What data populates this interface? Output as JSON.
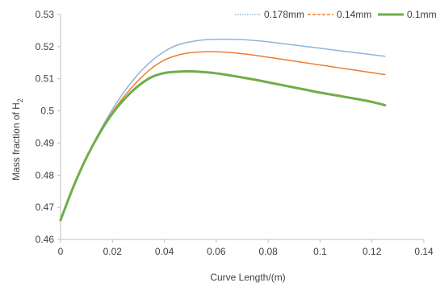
{
  "chart_data": {
    "type": "line",
    "title": "",
    "xlabel": "Curve Length/(m)",
    "ylabel_main": "Mass fraction of H",
    "ylabel_sub": "2",
    "xlim": [
      0,
      0.14
    ],
    "ylim": [
      0.46,
      0.53
    ],
    "x_ticks": [
      0,
      0.02,
      0.04,
      0.06,
      0.08,
      0.1,
      0.12,
      0.14
    ],
    "x_tick_labels": [
      "0",
      "0.02",
      "0.04",
      "0.06",
      "0.08",
      "0.1",
      "0.12",
      "0.14"
    ],
    "y_ticks": [
      0.46,
      0.47,
      0.48,
      0.49,
      0.5,
      0.51,
      0.52,
      0.53
    ],
    "y_tick_labels": [
      "0.46",
      "0.47",
      "0.48",
      "0.49",
      "0.5",
      "0.51",
      "0.52",
      "0.53"
    ],
    "grid": false,
    "legend_position": "top-right",
    "series": [
      {
        "name": "0.178mm",
        "color": "#8fb4dc",
        "x": [
          0,
          0.005,
          0.01,
          0.015,
          0.02,
          0.025,
          0.03,
          0.035,
          0.04,
          0.045,
          0.05,
          0.055,
          0.06,
          0.065,
          0.07,
          0.075,
          0.08,
          0.085,
          0.09,
          0.095,
          0.1,
          0.105,
          0.11,
          0.115,
          0.12,
          0.125
        ],
        "y": [
          0.466,
          0.4765,
          0.4855,
          0.4935,
          0.5005,
          0.5065,
          0.5115,
          0.5155,
          0.5185,
          0.5205,
          0.5215,
          0.5221,
          0.5223,
          0.5223,
          0.5222,
          0.5219,
          0.5215,
          0.521,
          0.5205,
          0.52,
          0.5195,
          0.519,
          0.5185,
          0.518,
          0.5175,
          0.517
        ]
      },
      {
        "name": "0.14mm",
        "color": "#ed7d31",
        "x": [
          0,
          0.005,
          0.01,
          0.015,
          0.02,
          0.025,
          0.03,
          0.035,
          0.04,
          0.045,
          0.05,
          0.055,
          0.06,
          0.065,
          0.07,
          0.075,
          0.08,
          0.085,
          0.09,
          0.095,
          0.1,
          0.105,
          0.11,
          0.115,
          0.12,
          0.125
        ],
        "y": [
          0.466,
          0.4765,
          0.4855,
          0.4932,
          0.4997,
          0.505,
          0.5095,
          0.5132,
          0.5158,
          0.5173,
          0.5181,
          0.5184,
          0.5184,
          0.5182,
          0.5178,
          0.5173,
          0.5167,
          0.5161,
          0.5155,
          0.5149,
          0.5143,
          0.5137,
          0.5131,
          0.5125,
          0.5119,
          0.5113
        ]
      },
      {
        "name": "0.1mm",
        "color": "#70ad47",
        "x": [
          0,
          0.005,
          0.01,
          0.015,
          0.02,
          0.025,
          0.03,
          0.035,
          0.04,
          0.045,
          0.05,
          0.055,
          0.06,
          0.065,
          0.07,
          0.075,
          0.08,
          0.085,
          0.09,
          0.095,
          0.1,
          0.105,
          0.11,
          0.115,
          0.12,
          0.125
        ],
        "y": [
          0.466,
          0.4765,
          0.4855,
          0.493,
          0.4992,
          0.504,
          0.5078,
          0.5105,
          0.5118,
          0.5122,
          0.5123,
          0.5121,
          0.5117,
          0.5111,
          0.5104,
          0.5097,
          0.5089,
          0.5081,
          0.5073,
          0.5065,
          0.5057,
          0.505,
          0.5043,
          0.5036,
          0.5028,
          0.5018
        ]
      }
    ]
  }
}
